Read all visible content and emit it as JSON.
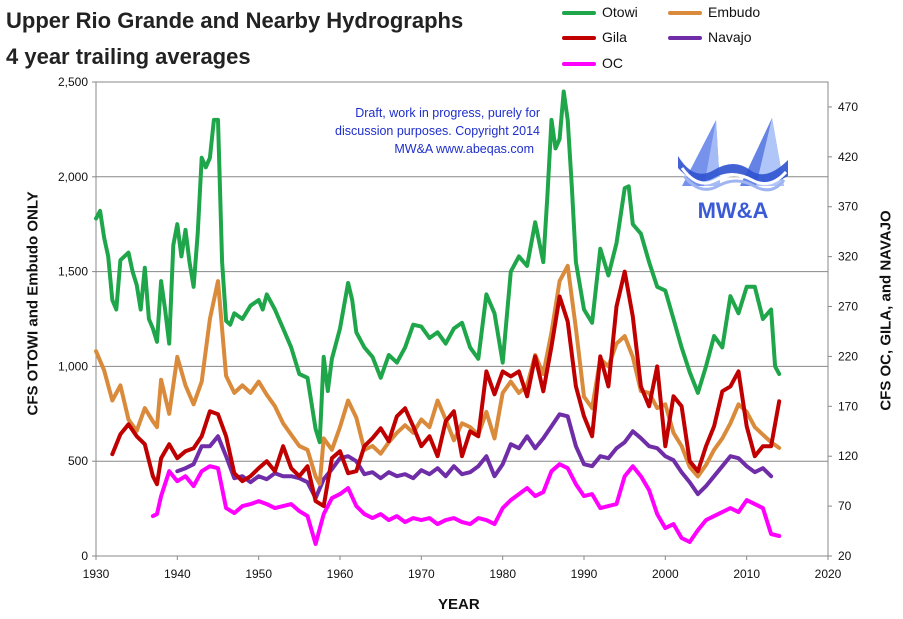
{
  "title_line1": "Upper Rio Grande and Nearby Hydrographs",
  "title_line2": "4 year trailing averages",
  "note": [
    "Draft, work in progress, purely for",
    "discussion purposes.  Copyright  2014",
    "MW&A     www.abeqas.com"
  ],
  "logo_text": "MW&A",
  "colors": {
    "otowi": "#1fa64a",
    "embudo": "#d98a3a",
    "gila": "#c00000",
    "navajo": "#6f2da8",
    "oc": "#ff00ff",
    "grid": "#888888",
    "note": "#1e2ecc",
    "logo": "#3b5bd6"
  },
  "chart_data": {
    "type": "line",
    "xlabel": "YEAR",
    "ylabel_left": "CFS   OTOWI and Embudo ONLY",
    "ylabel_right": "CFS   OC, GILA, and NAVAJO",
    "xlim": [
      1930,
      2020
    ],
    "ylim_left": [
      0,
      2500
    ],
    "ylim_right": [
      20,
      495
    ],
    "x_ticks": [
      1930,
      1940,
      1950,
      1960,
      1970,
      1980,
      1990,
      2000,
      2010,
      2020
    ],
    "y_ticks_left": [
      "0",
      "500",
      "1,000",
      "1,500",
      "2,000",
      "2,500"
    ],
    "y_tick_values_left": [
      0,
      500,
      1000,
      1500,
      2000,
      2500
    ],
    "y_ticks_right": [
      20,
      70,
      120,
      170,
      220,
      270,
      320,
      370,
      420,
      470
    ],
    "grid": "horizontal",
    "legend_placement": "top",
    "series": [
      {
        "name": "Otowi",
        "axis": "left",
        "color_key": "otowi",
        "x": [
          1930,
          1930.5,
          1931,
          1931.5,
          1932,
          1932.5,
          1933,
          1934,
          1934.5,
          1935,
          1935.5,
          1936,
          1936.5,
          1937,
          1937.5,
          1938,
          1938.5,
          1939,
          1939.5,
          1940,
          1940.5,
          1941,
          1941.5,
          1942,
          1942.5,
          1943,
          1943.5,
          1944,
          1944.5,
          1945,
          1945.5,
          1946,
          1946.5,
          1947,
          1948,
          1949,
          1950,
          1950.5,
          1951,
          1952,
          1953,
          1954,
          1955,
          1956,
          1957,
          1957.5,
          1958,
          1958.5,
          1959,
          1960,
          1961,
          1961.5,
          1962,
          1963,
          1964,
          1965,
          1966,
          1967,
          1968,
          1969,
          1970,
          1971,
          1972,
          1973,
          1974,
          1975,
          1976,
          1977,
          1978,
          1979,
          1980,
          1981,
          1982,
          1983,
          1984,
          1985,
          1985.5,
          1986,
          1986.5,
          1987,
          1987.5,
          1988,
          1988.5,
          1989,
          1990,
          1991,
          1992,
          1993,
          1994,
          1995,
          1995.5,
          1996,
          1997,
          1998,
          1999,
          2000,
          2001,
          2002,
          2003,
          2004,
          2005,
          2006,
          2007,
          2008,
          2009,
          2010,
          2011,
          2012,
          2013,
          2013.5,
          2014
        ],
        "y": [
          1780,
          1820,
          1680,
          1580,
          1350,
          1300,
          1560,
          1600,
          1500,
          1430,
          1300,
          1520,
          1250,
          1200,
          1130,
          1450,
          1300,
          1120,
          1640,
          1750,
          1580,
          1720,
          1550,
          1420,
          1700,
          2100,
          2050,
          2100,
          2300,
          2300,
          1550,
          1240,
          1220,
          1280,
          1250,
          1320,
          1350,
          1300,
          1380,
          1300,
          1200,
          1100,
          960,
          940,
          670,
          600,
          1050,
          870,
          1040,
          1200,
          1440,
          1350,
          1180,
          1100,
          1050,
          940,
          1060,
          1020,
          1100,
          1220,
          1210,
          1150,
          1180,
          1120,
          1200,
          1230,
          1100,
          1040,
          1380,
          1280,
          1020,
          1500,
          1580,
          1530,
          1760,
          1550,
          1900,
          2300,
          2150,
          2200,
          2450,
          2300,
          1950,
          1550,
          1300,
          1230,
          1620,
          1480,
          1650,
          1940,
          1950,
          1750,
          1700,
          1550,
          1420,
          1400,
          1250,
          1100,
          970,
          860,
          1000,
          1160,
          1100,
          1370,
          1280,
          1420,
          1420,
          1250,
          1300,
          1000,
          960
        ]
      },
      {
        "name": "Embudo",
        "axis": "left",
        "color_key": "embudo",
        "x": [
          1930,
          1931,
          1932,
          1933,
          1934,
          1935,
          1936,
          1937,
          1937.5,
          1938,
          1939,
          1940,
          1941,
          1942,
          1943,
          1944,
          1945,
          1946,
          1947,
          1948,
          1949,
          1950,
          1951,
          1952,
          1953,
          1954,
          1955,
          1956,
          1957,
          1957.5,
          1958,
          1959,
          1960,
          1961,
          1962,
          1963,
          1964,
          1965,
          1966,
          1967,
          1968,
          1969,
          1970,
          1971,
          1972,
          1973,
          1974,
          1975,
          1976,
          1977,
          1978,
          1979,
          1980,
          1981,
          1982,
          1983,
          1984,
          1985,
          1986,
          1987,
          1988,
          1989,
          1990,
          1991,
          1992,
          1993,
          1994,
          1995,
          1996,
          1997,
          1998,
          1999,
          2000,
          2001,
          2002,
          2003,
          2004,
          2005,
          2006,
          2007,
          2008,
          2009,
          2010,
          2011,
          2012,
          2013,
          2014
        ],
        "y": [
          1080,
          980,
          820,
          900,
          720,
          660,
          780,
          710,
          680,
          930,
          750,
          1050,
          900,
          800,
          920,
          1250,
          1450,
          950,
          860,
          900,
          860,
          920,
          850,
          790,
          700,
          640,
          580,
          560,
          420,
          380,
          620,
          560,
          680,
          820,
          730,
          560,
          580,
          540,
          600,
          650,
          690,
          650,
          720,
          680,
          820,
          720,
          610,
          700,
          680,
          640,
          760,
          620,
          860,
          920,
          860,
          900,
          1060,
          960,
          1180,
          1450,
          1530,
          1200,
          840,
          780,
          1040,
          1000,
          1120,
          1160,
          1050,
          870,
          860,
          780,
          800,
          650,
          580,
          470,
          420,
          480,
          560,
          620,
          700,
          800,
          760,
          680,
          640,
          600,
          570
        ]
      },
      {
        "name": "Gila",
        "axis": "right",
        "color_key": "gila",
        "x": [
          1932,
          1933,
          1934,
          1935,
          1936,
          1937,
          1937.5,
          1938,
          1939,
          1940,
          1941,
          1942,
          1943,
          1944,
          1945,
          1946,
          1947,
          1948,
          1949,
          1950,
          1951,
          1952,
          1953,
          1954,
          1955,
          1956,
          1957,
          1958,
          1959,
          1960,
          1961,
          1962,
          1963,
          1964,
          1965,
          1966,
          1967,
          1968,
          1969,
          1970,
          1971,
          1972,
          1973,
          1974,
          1975,
          1976,
          1977,
          1978,
          1979,
          1980,
          1981,
          1982,
          1983,
          1984,
          1985,
          1986,
          1987,
          1988,
          1989,
          1990,
          1991,
          1992,
          1993,
          1994,
          1995,
          1996,
          1997,
          1998,
          1999,
          2000,
          2001,
          2002,
          2003,
          2004,
          2005,
          2006,
          2007,
          2008,
          2009,
          2010,
          2011,
          2012,
          2013,
          2014
        ],
        "y": [
          122,
          142,
          152,
          140,
          132,
          100,
          92,
          118,
          132,
          118,
          125,
          128,
          140,
          165,
          162,
          140,
          103,
          95,
          100,
          108,
          115,
          105,
          130,
          108,
          100,
          110,
          75,
          70,
          118,
          125,
          103,
          105,
          130,
          138,
          148,
          135,
          160,
          168,
          150,
          130,
          140,
          120,
          155,
          165,
          120,
          145,
          140,
          205,
          182,
          205,
          200,
          205,
          180,
          220,
          185,
          230,
          280,
          255,
          190,
          160,
          140,
          220,
          190,
          270,
          305,
          260,
          190,
          170,
          210,
          130,
          180,
          170,
          115,
          105,
          130,
          150,
          185,
          190,
          205,
          150,
          120,
          130,
          130,
          175
        ]
      },
      {
        "name": "Navajo",
        "axis": "right",
        "color_key": "navajo",
        "x": [
          1940,
          1941,
          1942,
          1943,
          1944,
          1945,
          1946,
          1947,
          1948,
          1949,
          1950,
          1951,
          1952,
          1953,
          1954,
          1955,
          1956,
          1957,
          1958,
          1959,
          1960,
          1961,
          1962,
          1963,
          1964,
          1965,
          1966,
          1967,
          1968,
          1969,
          1970,
          1971,
          1972,
          1973,
          1974,
          1975,
          1976,
          1977,
          1978,
          1979,
          1980,
          1981,
          1982,
          1983,
          1984,
          1985,
          1986,
          1987,
          1988,
          1989,
          1990,
          1991,
          1992,
          1993,
          1994,
          1995,
          1996,
          1997,
          1998,
          1999,
          2000,
          2001,
          2002,
          2003,
          2004,
          2005,
          2006,
          2007,
          2008,
          2009,
          2010,
          2011,
          2012,
          2013
        ],
        "y": [
          105,
          108,
          112,
          130,
          130,
          140,
          120,
          98,
          100,
          94,
          100,
          97,
          103,
          100,
          100,
          98,
          94,
          78,
          97,
          107,
          118,
          120,
          115,
          102,
          104,
          98,
          104,
          100,
          102,
          98,
          106,
          102,
          108,
          100,
          110,
          102,
          104,
          110,
          120,
          100,
          112,
          132,
          128,
          140,
          128,
          138,
          150,
          162,
          160,
          130,
          112,
          110,
          120,
          118,
          128,
          134,
          145,
          138,
          130,
          128,
          120,
          116,
          104,
          94,
          82,
          90,
          100,
          110,
          120,
          118,
          110,
          104,
          108,
          100
        ]
      },
      {
        "name": "OC",
        "axis": "right",
        "color_key": "oc",
        "x": [
          1937,
          1937.5,
          1938,
          1939,
          1940,
          1941,
          1942,
          1943,
          1944,
          1945,
          1946,
          1947,
          1948,
          1949,
          1950,
          1951,
          1952,
          1953,
          1954,
          1955,
          1956,
          1957,
          1958,
          1959,
          1960,
          1961,
          1962,
          1963,
          1964,
          1965,
          1966,
          1967,
          1968,
          1969,
          1970,
          1971,
          1972,
          1973,
          1974,
          1975,
          1976,
          1977,
          1978,
          1979,
          1980,
          1981,
          1982,
          1983,
          1984,
          1985,
          1986,
          1987,
          1988,
          1989,
          1990,
          1991,
          1992,
          1993,
          1994,
          1995,
          1996,
          1997,
          1998,
          1999,
          2000,
          2001,
          2002,
          2003,
          2004,
          2005,
          2006,
          2007,
          2008,
          2009,
          2010,
          2011,
          2012,
          2013,
          2014
        ],
        "y": [
          60,
          62,
          80,
          105,
          95,
          100,
          90,
          105,
          110,
          108,
          68,
          63,
          70,
          72,
          75,
          72,
          68,
          70,
          72,
          65,
          60,
          32,
          62,
          78,
          82,
          88,
          70,
          62,
          58,
          62,
          56,
          60,
          54,
          58,
          56,
          58,
          52,
          56,
          58,
          54,
          52,
          58,
          56,
          52,
          68,
          76,
          82,
          88,
          80,
          84,
          105,
          112,
          108,
          92,
          80,
          82,
          68,
          70,
          72,
          100,
          110,
          100,
          86,
          62,
          48,
          52,
          38,
          34,
          46,
          56,
          60,
          64,
          68,
          64,
          76,
          72,
          68,
          42,
          40
        ]
      }
    ]
  }
}
